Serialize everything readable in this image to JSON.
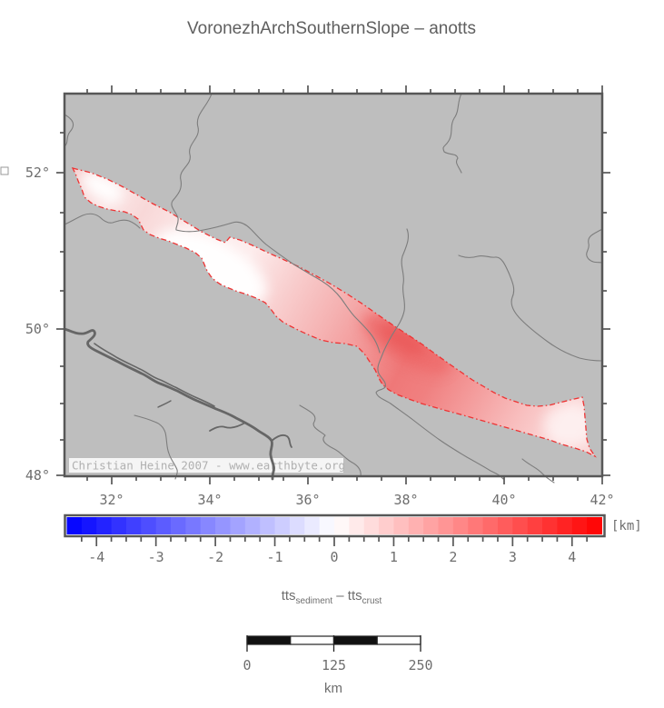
{
  "title": "VoronezhArchSouthernSlope – anotts",
  "map": {
    "watermark": "Christian Heine 2007 - www.earthbyte.org",
    "background_color": "#bebebe",
    "region_outline_color": "#ee3333",
    "river_color": "#7d7d7d",
    "lon_major_labels": [
      "32°",
      "34°",
      "36°",
      "38°",
      "40°",
      "42°"
    ],
    "lon_major_deg": [
      32,
      34,
      36,
      38,
      40,
      42
    ],
    "lon_minor_step_deg": 0.5,
    "lat_major_labels": [
      "48°",
      "50°",
      "52°"
    ],
    "lat_major_deg": [
      48,
      50,
      52
    ],
    "lat_minor_step_deg": 0.5
  },
  "chart_data": {
    "type": "heatmap",
    "title": "VoronezhArchSouthernSlope – anotts",
    "region_name": "Voronezh Arch Southern Slope",
    "quantity": "tts_sediment - tts_crust",
    "units": "km",
    "lon_range": [
      31.0,
      42.0
    ],
    "lat_range": [
      48.0,
      53.0
    ],
    "anomaly_band": "elongated NW-SE polygon from about (31.2E, 52.1N) to (42E, 48.6N), values ~0 (white) in northwest, peaking ~ +2.5 km near (38E, 49.6N), fading to ~ +0.5 km at the eastern wide end",
    "colorbar_range": [
      -4.5,
      4.5
    ],
    "colorbar_step": 0.25
  },
  "colorbar": {
    "min": -4.5,
    "max": 4.5,
    "segment_step": 0.25,
    "major_tick_labels": [
      "-4",
      "-3",
      "-2",
      "-1",
      "0",
      "1",
      "2",
      "3",
      "4"
    ],
    "major_tick_values": [
      -4,
      -3,
      -2,
      -1,
      0,
      1,
      2,
      3,
      4
    ],
    "minor_tick_step": 0.25,
    "unit_label": "[km]",
    "negative_color": "#0000ff",
    "zero_color": "#ffffff",
    "positive_color": "#ff0000"
  },
  "quantity_label": {
    "prefix": "tts",
    "prefix_sub": "sediment",
    "separator": " – ",
    "suffix": "tts",
    "suffix_sub": "crust"
  },
  "scalebar": {
    "tick_labels": [
      "0",
      "125",
      "250"
    ],
    "unit_label": "km",
    "length_km": 250
  }
}
